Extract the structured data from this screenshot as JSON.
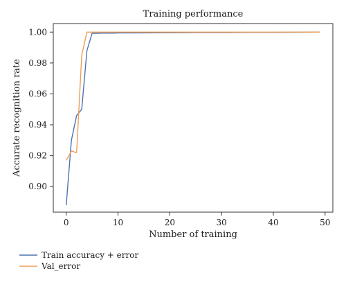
{
  "chart_data": {
    "type": "line",
    "title": "Training performance",
    "xlabel": "Number of training",
    "ylabel": "Accurate recognition rate",
    "xlim": [
      -2.5,
      51.5
    ],
    "ylim": [
      0.8835,
      1.0055
    ],
    "xticks": [
      0,
      10,
      20,
      30,
      40,
      50
    ],
    "yticks": [
      0.9,
      0.92,
      0.94,
      0.96,
      0.98,
      1.0
    ],
    "xtick_labels": [
      "0",
      "10",
      "20",
      "30",
      "40",
      "50"
    ],
    "ytick_labels": [
      "0.90",
      "0.92",
      "0.94",
      "0.96",
      "0.98",
      "1.00"
    ],
    "grid": false,
    "legend_position": "below the plot, bottom-left",
    "series": [
      {
        "name": "Train accuracy + error",
        "color": "#4c72b0",
        "x": [
          0,
          1,
          2,
          3,
          4,
          5,
          6,
          7,
          8,
          9,
          10,
          15,
          20,
          25,
          30,
          35,
          40,
          45,
          49
        ],
        "y": [
          0.888,
          0.93,
          0.946,
          0.95,
          0.988,
          0.9992,
          0.9992,
          0.9993,
          0.9993,
          0.9993,
          0.9994,
          0.9995,
          0.9996,
          0.9997,
          0.9997,
          0.9998,
          0.9998,
          0.9999,
          1.0
        ]
      },
      {
        "name": "Val_error",
        "color": "#ed9d55",
        "x": [
          0,
          1,
          2,
          3,
          4,
          5,
          6,
          7,
          8,
          9,
          10,
          15,
          20,
          25,
          30,
          35,
          40,
          45,
          49
        ],
        "y": [
          0.917,
          0.923,
          0.922,
          0.985,
          1.0,
          1.0,
          1.0,
          1.0,
          1.0,
          1.0,
          1.0,
          1.0,
          1.0,
          1.0,
          1.0,
          1.0,
          1.0,
          1.0,
          1.0
        ]
      }
    ]
  }
}
